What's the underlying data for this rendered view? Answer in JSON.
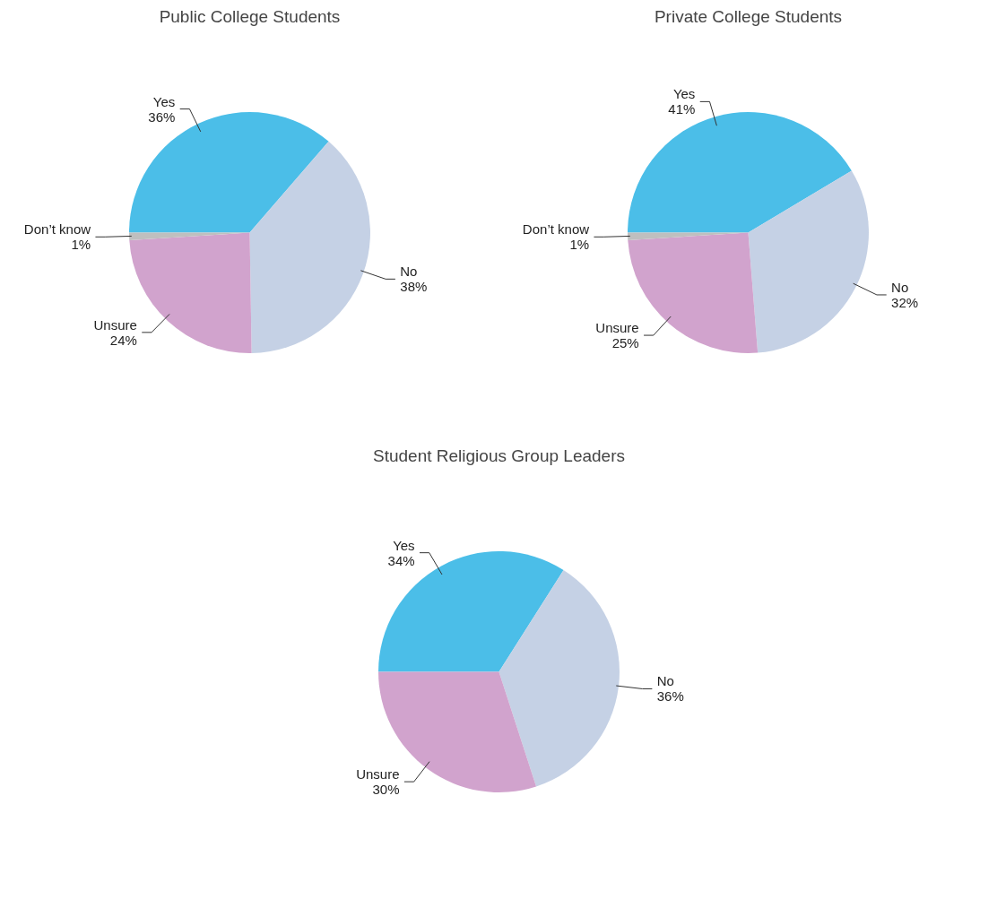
{
  "chart_data": [
    {
      "type": "pie",
      "title": "Public College Students",
      "categories": [
        "Yes",
        "No",
        "Unsure",
        "Don’t know"
      ],
      "values": [
        36,
        38,
        24,
        1
      ],
      "value_labels": [
        "36%",
        "38%",
        "24%",
        "1%"
      ],
      "colors": [
        "#4bbee8",
        "#c5d1e5",
        "#d1a3cd",
        "#bfbfbf"
      ]
    },
    {
      "type": "pie",
      "title": "Private College Students",
      "categories": [
        "Yes",
        "No",
        "Unsure",
        "Don’t know"
      ],
      "values": [
        41,
        32,
        25,
        1
      ],
      "value_labels": [
        "41%",
        "32%",
        "25%",
        "1%"
      ],
      "colors": [
        "#4bbee8",
        "#c5d1e5",
        "#d1a3cd",
        "#bfbfbf"
      ]
    },
    {
      "type": "pie",
      "title": "Student Religious Group Leaders",
      "categories": [
        "Yes",
        "No",
        "Unsure"
      ],
      "values": [
        34,
        36,
        30
      ],
      "value_labels": [
        "34%",
        "36%",
        "30%"
      ],
      "colors": [
        "#4bbee8",
        "#c5d1e5",
        "#d1a3cd"
      ]
    }
  ]
}
